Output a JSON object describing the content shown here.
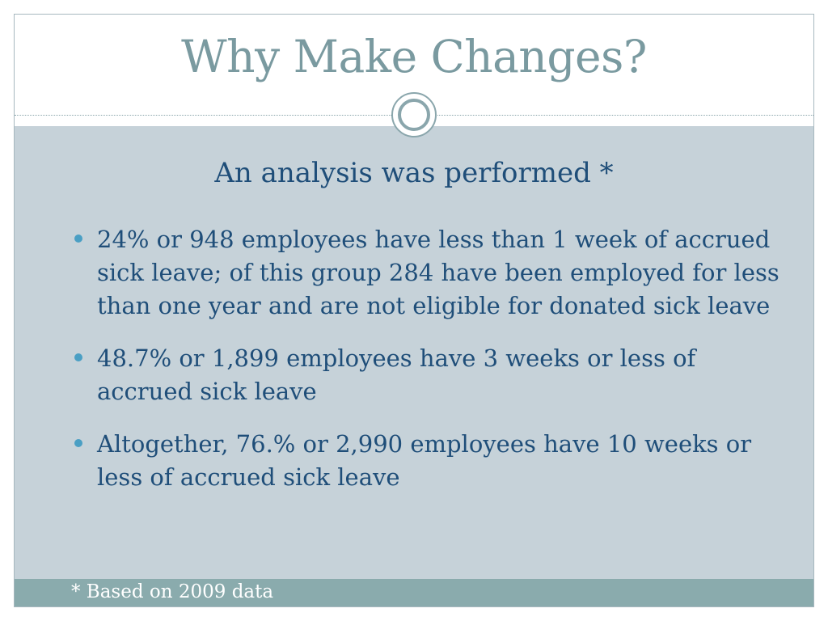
{
  "slide": {
    "title": "Why Make Changes?",
    "subheading": "An analysis was performed *",
    "bullets": [
      {
        "text": "24%  or 948 employees have less than 1 week of accrued sick leave; of this group 284 have been employed for less than one year and are not eligible for donated sick leave"
      },
      {
        "text": "48.7% or 1,899 employees have 3 weeks or less of accrued sick leave"
      },
      {
        "text": "Altogether, 76.% or 2,990 employees have 10 weeks or less of accrued sick leave"
      }
    ],
    "footnote": "* Based on 2009 data"
  },
  "colors": {
    "title": "#7a9aa0",
    "body_text": "#1f4e79",
    "panel": "#c6d2d9",
    "footer_band": "#8aabad",
    "bullet": "#4a9fc4"
  }
}
